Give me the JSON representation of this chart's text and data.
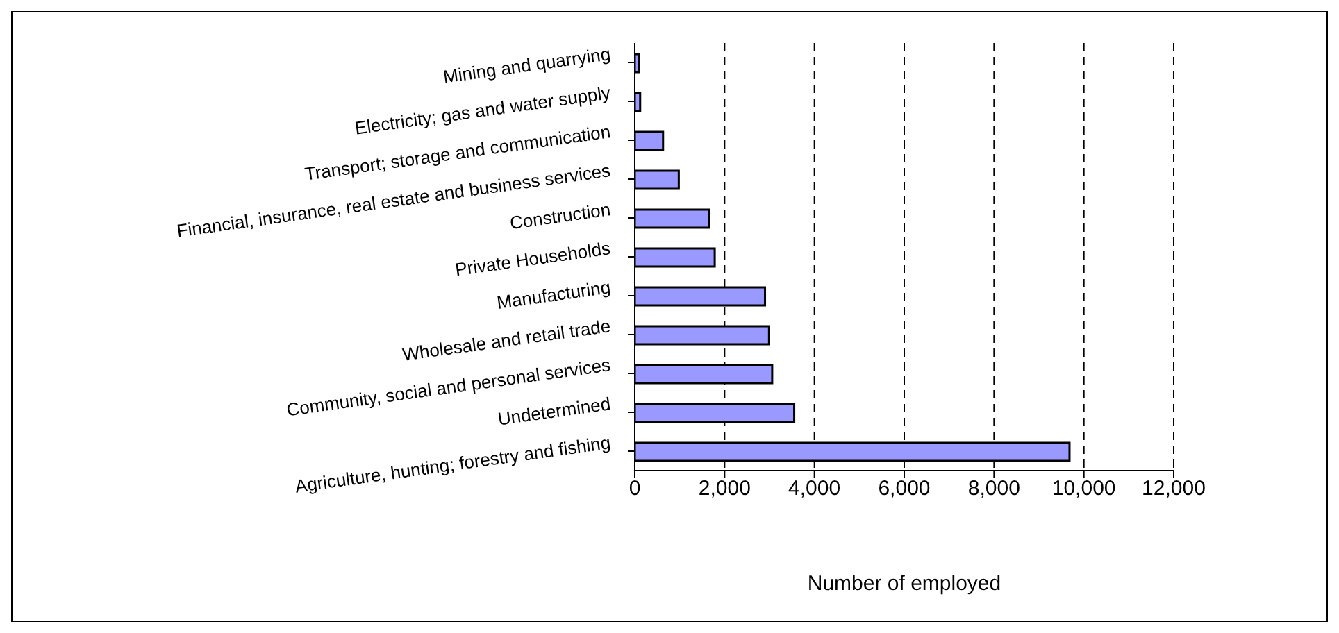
{
  "chart_data": {
    "type": "bar",
    "orientation": "horizontal",
    "xlabel": "Number of employed",
    "categories": [
      "Mining and quarrying",
      "Electricity; gas and water supply",
      "Transport; storage and communication",
      "Financial, insurance, real estate and business services",
      "Construction",
      "Private Households",
      "Manufacturing",
      "Wholesale and retail trade",
      "Community, social and personal services",
      "Undetermined",
      "Agriculture, hunting; forestry and fishing"
    ],
    "values": [
      100,
      120,
      630,
      980,
      1660,
      1780,
      2900,
      2990,
      3060,
      3550,
      9680
    ],
    "color": "#9999ff",
    "xlim": [
      0,
      12000
    ],
    "xticks": [
      {
        "value": 0,
        "label": "0"
      },
      {
        "value": 2000,
        "label": "2,000"
      },
      {
        "value": 4000,
        "label": "4,000"
      },
      {
        "value": 6000,
        "label": "6,000"
      },
      {
        "value": 8000,
        "label": "8,000"
      },
      {
        "value": 10000,
        "label": "10,000"
      },
      {
        "value": 12000,
        "label": "12,000"
      }
    ],
    "grid": "x",
    "legend": false
  }
}
